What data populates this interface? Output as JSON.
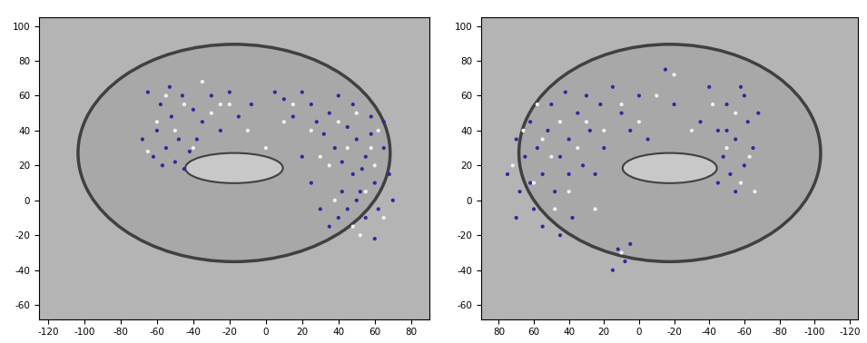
{
  "chart_data": [
    {
      "type": "scatter",
      "xlim": [
        -125,
        90
      ],
      "ylim": [
        -68,
        105
      ],
      "xticks": [
        -120,
        -100,
        -80,
        -60,
        -40,
        -20,
        0,
        20,
        40,
        60,
        80
      ],
      "yticks": [
        -60,
        -40,
        -20,
        0,
        20,
        40,
        60,
        80,
        100
      ],
      "grid": false,
      "series": [
        {
          "color": "#2b2b9c",
          "marker": "o",
          "x": [
            -65,
            -58,
            -52,
            -60,
            -48,
            -55,
            -62,
            -50,
            -45,
            -40,
            -35,
            -30,
            -25,
            -20,
            -15,
            -8,
            5,
            10,
            15,
            20,
            25,
            28,
            32,
            35,
            38,
            40,
            42,
            45,
            48,
            50,
            52,
            55,
            58,
            60,
            62,
            65,
            68,
            70,
            45,
            40,
            35,
            55,
            60,
            30,
            50,
            42,
            65,
            58,
            48,
            53,
            -42,
            -57,
            -68,
            -46,
            -53,
            -38,
            25,
            20
          ],
          "y": [
            62,
            55,
            48,
            40,
            35,
            30,
            25,
            22,
            18,
            52,
            45,
            60,
            40,
            62,
            48,
            55,
            62,
            58,
            48,
            62,
            55,
            45,
            38,
            50,
            30,
            60,
            22,
            42,
            15,
            35,
            5,
            25,
            48,
            10,
            -5,
            30,
            15,
            0,
            -5,
            -10,
            -15,
            -10,
            -22,
            -5,
            0,
            5,
            45,
            38,
            55,
            18,
            28,
            20,
            35,
            60,
            65,
            35,
            10,
            25
          ]
        },
        {
          "color": "#f2f2f2",
          "marker": "o",
          "x": [
            -60,
            -50,
            -45,
            -40,
            -30,
            -55,
            -20,
            -10,
            0,
            15,
            25,
            30,
            35,
            40,
            45,
            50,
            55,
            60,
            65,
            38,
            48,
            58,
            -65,
            -35,
            10,
            62,
            52,
            -25
          ],
          "y": [
            45,
            40,
            55,
            30,
            50,
            60,
            55,
            40,
            30,
            55,
            40,
            25,
            20,
            45,
            30,
            50,
            5,
            20,
            -10,
            0,
            -15,
            30,
            28,
            68,
            45,
            40,
            -20,
            55
          ]
        }
      ]
    },
    {
      "type": "scatter",
      "xlim": [
        90,
        -125
      ],
      "ylim": [
        -68,
        105
      ],
      "xticks": [
        80,
        60,
        40,
        20,
        0,
        -20,
        -40,
        -60,
        -80,
        -100,
        -120
      ],
      "yticks": [
        -60,
        -40,
        -20,
        0,
        20,
        40,
        60,
        80,
        100
      ],
      "grid": false,
      "series": [
        {
          "color": "#2b2b9c",
          "marker": "o",
          "x": [
            75,
            70,
            68,
            65,
            62,
            60,
            58,
            55,
            52,
            50,
            48,
            45,
            42,
            40,
            38,
            35,
            32,
            30,
            28,
            25,
            22,
            20,
            15,
            10,
            5,
            0,
            -5,
            -15,
            -20,
            -35,
            -40,
            -45,
            -48,
            -50,
            -52,
            -55,
            -58,
            -60,
            -62,
            -65,
            -68,
            -55,
            -45,
            12,
            8,
            15,
            5,
            70,
            62,
            55,
            45,
            40,
            -60,
            -50
          ],
          "y": [
            15,
            35,
            5,
            25,
            45,
            -5,
            30,
            15,
            40,
            55,
            5,
            25,
            62,
            35,
            -10,
            50,
            20,
            60,
            40,
            15,
            55,
            30,
            65,
            50,
            40,
            60,
            35,
            75,
            55,
            45,
            65,
            40,
            25,
            55,
            15,
            35,
            65,
            20,
            45,
            30,
            50,
            5,
            10,
            -28,
            -35,
            -40,
            -25,
            -10,
            10,
            -15,
            -20,
            15,
            60,
            40
          ]
        },
        {
          "color": "#f2f2f2",
          "marker": "o",
          "x": [
            72,
            66,
            60,
            55,
            50,
            45,
            40,
            35,
            30,
            25,
            20,
            10,
            0,
            -10,
            -30,
            -42,
            -50,
            -55,
            -63,
            -66,
            -20,
            10,
            48,
            58,
            -58
          ],
          "y": [
            20,
            40,
            10,
            35,
            25,
            45,
            5,
            30,
            45,
            -5,
            40,
            55,
            45,
            60,
            40,
            55,
            30,
            50,
            25,
            5,
            72,
            -30,
            -5,
            55,
            10
          ]
        }
      ]
    }
  ]
}
